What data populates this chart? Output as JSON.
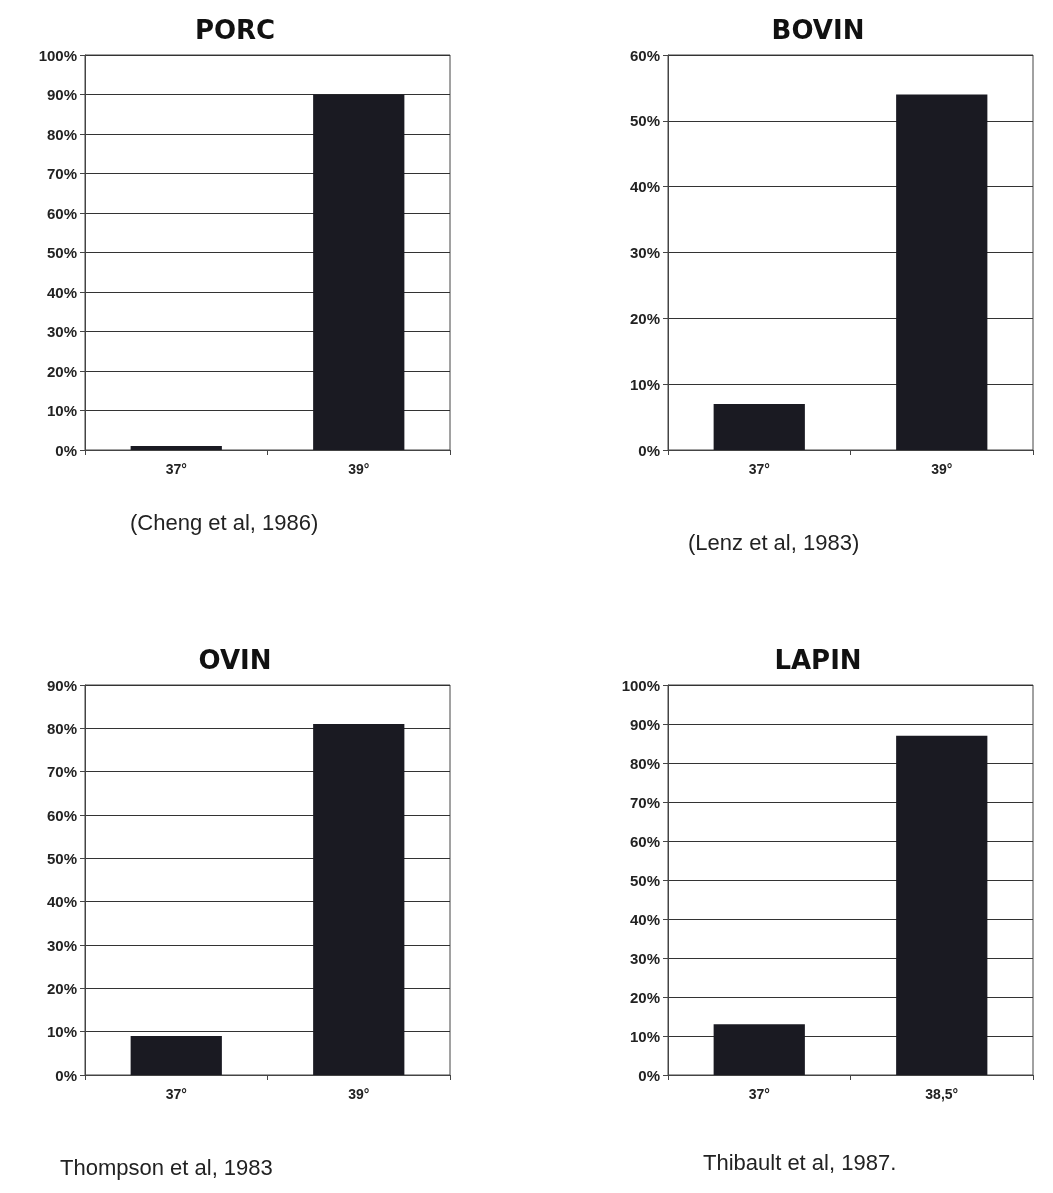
{
  "chart_data": [
    {
      "type": "bar",
      "title": "PORC",
      "categories": [
        "37°",
        "39°"
      ],
      "values": [
        1,
        90
      ],
      "color": "#1a1a22",
      "ylim": [
        0,
        100
      ],
      "yticks": [
        {
          "value": 0,
          "label": "0%"
        },
        {
          "value": 10,
          "label": "10%"
        },
        {
          "value": 20,
          "label": "20%"
        },
        {
          "value": 30,
          "label": "30%"
        },
        {
          "value": 40,
          "label": "40%"
        },
        {
          "value": 50,
          "label": "50%"
        },
        {
          "value": 60,
          "label": "60%"
        },
        {
          "value": 70,
          "label": "70%"
        },
        {
          "value": 80,
          "label": "80%"
        },
        {
          "value": 90,
          "label": "90%"
        },
        {
          "value": 100,
          "label": "100%"
        }
      ],
      "grid": "y",
      "annotations": [
        "(Cheng et al, 1986)"
      ]
    },
    {
      "type": "bar",
      "title": "BOVIN",
      "categories": [
        "37°",
        "39°"
      ],
      "values": [
        7,
        54
      ],
      "color": "#1a1a22",
      "ylim": [
        0,
        60
      ],
      "yticks": [
        {
          "value": 0,
          "label": "0%"
        },
        {
          "value": 10,
          "label": "10%"
        },
        {
          "value": 20,
          "label": "20%"
        },
        {
          "value": 30,
          "label": "30%"
        },
        {
          "value": 40,
          "label": "40%"
        },
        {
          "value": 50,
          "label": "50%"
        },
        {
          "value": 60,
          "label": "60%"
        }
      ],
      "grid": "y",
      "annotations": [
        "(Lenz et al, 1983)"
      ]
    },
    {
      "type": "bar",
      "title": "OVIN",
      "categories": [
        "37°",
        "39°"
      ],
      "values": [
        9,
        81
      ],
      "color": "#1a1a22",
      "ylim": [
        0,
        90
      ],
      "yticks": [
        {
          "value": 0,
          "label": "0%"
        },
        {
          "value": 10,
          "label": "10%"
        },
        {
          "value": 20,
          "label": "20%"
        },
        {
          "value": 30,
          "label": "30%"
        },
        {
          "value": 40,
          "label": "40%"
        },
        {
          "value": 50,
          "label": "50%"
        },
        {
          "value": 60,
          "label": "60%"
        },
        {
          "value": 70,
          "label": "70%"
        },
        {
          "value": 80,
          "label": "80%"
        },
        {
          "value": 90,
          "label": "90%"
        }
      ],
      "grid": "y",
      "annotations": [
        "Thompson et al, 1983"
      ]
    },
    {
      "type": "bar",
      "title": "LAPIN",
      "categories": [
        "37°",
        "38,5°"
      ],
      "values": [
        13,
        87
      ],
      "color": "#1a1a22",
      "ylim": [
        0,
        100
      ],
      "yticks": [
        {
          "value": 0,
          "label": "0%"
        },
        {
          "value": 10,
          "label": "10%"
        },
        {
          "value": 20,
          "label": "20%"
        },
        {
          "value": 30,
          "label": "30%"
        },
        {
          "value": 40,
          "label": "40%"
        },
        {
          "value": 50,
          "label": "50%"
        },
        {
          "value": 60,
          "label": "60%"
        },
        {
          "value": 70,
          "label": "70%"
        },
        {
          "value": 80,
          "label": "80%"
        },
        {
          "value": 90,
          "label": "90%"
        },
        {
          "value": 100,
          "label": "100%"
        }
      ],
      "grid": "y",
      "annotations": [
        "Thibault et al, 1987."
      ]
    }
  ]
}
